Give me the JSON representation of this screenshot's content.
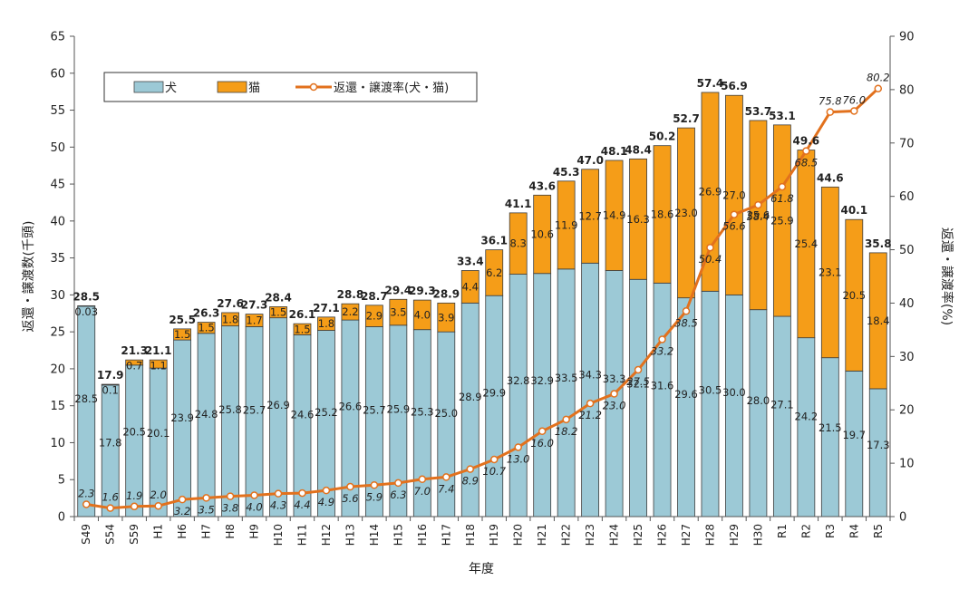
{
  "chart_data": {
    "type": "bar",
    "stacked": true,
    "categories": [
      "S49",
      "S54",
      "S59",
      "H1",
      "H6",
      "H7",
      "H8",
      "H9",
      "H10",
      "H11",
      "H12",
      "H13",
      "H14",
      "H15",
      "H16",
      "H17",
      "H18",
      "H19",
      "H20",
      "H21",
      "H22",
      "H23",
      "H24",
      "H25",
      "H26",
      "H27",
      "H28",
      "H29",
      "H30",
      "R1",
      "R2",
      "R3",
      "R4",
      "R5"
    ],
    "series": [
      {
        "name": "犬",
        "type": "bar",
        "axis": "left",
        "color": "#9cc9d6",
        "values": [
          28.5,
          17.8,
          20.5,
          20.1,
          23.9,
          24.8,
          25.8,
          25.7,
          26.9,
          24.6,
          25.2,
          26.6,
          25.7,
          25.9,
          25.3,
          25.0,
          28.9,
          29.9,
          32.8,
          32.9,
          33.5,
          34.3,
          33.3,
          32.1,
          31.6,
          29.6,
          30.5,
          30.0,
          28.0,
          27.1,
          24.2,
          21.5,
          19.7,
          17.3
        ],
        "labels": [
          "28.5",
          "17.8",
          "20.5",
          "20.1",
          "23.9",
          "24.8",
          "25.8",
          "25.7",
          "26.9",
          "24.6",
          "25.2",
          "26.6",
          "25.7",
          "25.9",
          "25.3",
          "25.0",
          "28.9",
          "29.9",
          "32.8",
          "32.9",
          "33.5",
          "34.3",
          "33.3",
          "32.1",
          "31.6",
          "29.6",
          "30.5",
          "30.0",
          "28.0",
          "27.1",
          "24.2",
          "21.5",
          "19.7",
          "17.3"
        ]
      },
      {
        "name": "猫",
        "type": "bar",
        "axis": "left",
        "color": "#f59d18",
        "values": [
          0.03,
          0.1,
          0.7,
          1.1,
          1.5,
          1.5,
          1.8,
          1.7,
          1.5,
          1.5,
          1.8,
          2.2,
          2.9,
          3.5,
          4.0,
          3.9,
          4.4,
          6.2,
          8.3,
          10.6,
          11.9,
          12.7,
          14.9,
          16.3,
          18.6,
          23.0,
          26.9,
          27.0,
          25.6,
          25.9,
          25.4,
          23.1,
          20.5,
          18.4
        ],
        "labels": [
          "0.03",
          "0.1",
          "0.7",
          "1.1",
          "1.5",
          "1.5",
          "1.8",
          "1.7",
          "1.5",
          "1.5",
          "1.8",
          "2.2",
          "2.9",
          "3.5",
          "4.0",
          "3.9",
          "4.4",
          "6.2",
          "8.3",
          "10.6",
          "11.9",
          "12.7",
          "14.9",
          "16.3",
          "18.6",
          "23.0",
          "26.9",
          "27.0",
          "25.6",
          "25.9",
          "25.4",
          "23.1",
          "20.5",
          "18.4"
        ]
      },
      {
        "name": "返還・譲渡率(犬・猫)",
        "type": "line",
        "axis": "right",
        "color": "#e2711d",
        "values": [
          2.3,
          1.6,
          1.9,
          2.0,
          3.2,
          3.5,
          3.8,
          4.0,
          4.3,
          4.4,
          4.9,
          5.6,
          5.9,
          6.3,
          7.0,
          7.4,
          8.9,
          10.7,
          13.0,
          16.0,
          18.2,
          21.2,
          23.0,
          27.5,
          33.2,
          38.5,
          50.4,
          56.6,
          58.4,
          61.8,
          68.5,
          75.8,
          76.0,
          80.2
        ],
        "labels": [
          "2.3",
          "1.6",
          "1.9",
          "2.0",
          "3.2",
          "3.5",
          "3.8",
          "4.0",
          "4.3",
          "4.4",
          "4.9",
          "5.6",
          "5.9",
          "6.3",
          "7.0",
          "7.4",
          "8.9",
          "10.7",
          "13.0",
          "16.0",
          "18.2",
          "21.2",
          "23.0",
          "27.5",
          "33.2",
          "38.5",
          "50.4",
          "56.6",
          "58.4",
          "61.8",
          "68.5",
          "75.8",
          "76.0",
          "80.2"
        ]
      }
    ],
    "totals": [
      "28.5",
      "17.9",
      "21.3",
      "21.1",
      "25.5",
      "26.3",
      "27.6",
      "27.3",
      "28.4",
      "26.1",
      "27.1",
      "28.8",
      "28.7",
      "29.4",
      "29.3",
      "28.9",
      "33.4",
      "36.1",
      "41.1",
      "43.6",
      "45.3",
      "47.0",
      "48.1",
      "48.4",
      "50.2",
      "52.7",
      "57.4",
      "56.9",
      "53.7",
      "53.1",
      "49.6",
      "44.6",
      "40.1",
      "35.8"
    ],
    "xlabel": "年度",
    "ylabel": "返還・譲渡数(千頭)",
    "y2label": "返還・譲渡率(%)",
    "ylim": [
      0,
      65
    ],
    "y_ticks": [
      0,
      5,
      10,
      15,
      20,
      25,
      30,
      35,
      40,
      45,
      50,
      55,
      60,
      65
    ],
    "y2lim": [
      0,
      90
    ],
    "y2_ticks": [
      0,
      10,
      20,
      30,
      40,
      50,
      60,
      70,
      80,
      90
    ],
    "grid": false,
    "legend": {
      "position": "top-left",
      "entries": [
        "犬",
        "猫",
        "返還・譲渡率(犬・猫)"
      ]
    }
  }
}
